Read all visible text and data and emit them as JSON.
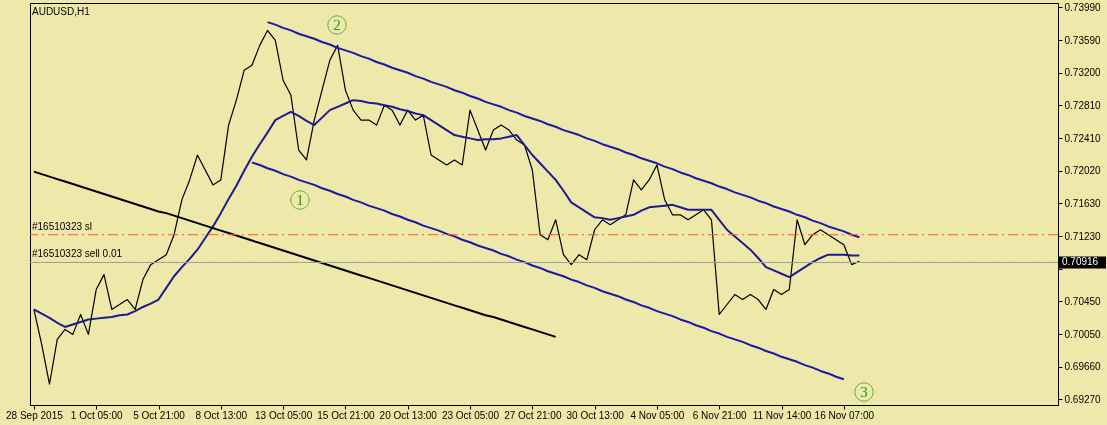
{
  "chart_data": {
    "type": "line",
    "title": "AUDUSD,H1",
    "categories": [
      "28 Sep 2015",
      null,
      null,
      null,
      null,
      null,
      null,
      null,
      "1 Oct 05:00",
      null,
      null,
      null,
      null,
      null,
      null,
      null,
      "5 Oct 21:00",
      null,
      null,
      null,
      null,
      null,
      null,
      null,
      "8 Oct 13:00",
      null,
      null,
      null,
      null,
      null,
      null,
      null,
      "13 Oct 05:00",
      null,
      null,
      null,
      null,
      null,
      null,
      null,
      "15 Oct 21:00",
      null,
      null,
      null,
      null,
      null,
      null,
      null,
      "20 Oct 13:00",
      null,
      null,
      null,
      null,
      null,
      null,
      null,
      "23 Oct 05:00",
      null,
      null,
      null,
      null,
      null,
      null,
      null,
      "27 Oct 21:00",
      null,
      null,
      null,
      null,
      null,
      null,
      null,
      "30 Oct 13:00",
      null,
      null,
      null,
      null,
      null,
      null,
      null,
      "4 Nov 05:00",
      null,
      null,
      null,
      null,
      null,
      null,
      null,
      "6 Nov 21:00",
      null,
      null,
      null,
      null,
      null,
      null,
      null,
      "11 Nov 14:00",
      null,
      null,
      null,
      null,
      null,
      null,
      null,
      "16 Nov 07:00",
      null,
      null,
      null,
      null,
      null,
      null,
      null,
      null,
      null,
      null,
      null,
      null,
      null,
      null,
      null,
      null,
      null,
      null,
      null,
      null,
      null,
      null,
      null,
      null,
      null,
      null,
      null
    ],
    "series": [
      {
        "color": "#000000",
        "values": [
          0.7035,
          0.6993,
          0.6945,
          0.6999,
          0.7011,
          0.7005,
          0.7029,
          0.7005,
          0.7059,
          0.7077,
          0.7035,
          0.7041,
          0.7047,
          0.7035,
          0.7071,
          0.7089,
          0.7095,
          0.7101,
          0.7125,
          0.7167,
          0.7191,
          0.7221,
          0.7203,
          0.7185,
          0.7191,
          0.7257,
          0.7287,
          0.7323,
          0.7329,
          0.7353,
          0.7371,
          0.7359,
          0.7311,
          0.7293,
          0.7227,
          0.7215,
          0.7263,
          0.7299,
          0.7335,
          0.7353,
          0.7299,
          0.7275,
          0.7263,
          0.7263,
          0.7257,
          0.7281,
          0.7275,
          0.7257,
          0.7275,
          0.7263,
          0.7269,
          0.7221,
          0.7215,
          0.7209,
          0.7215,
          0.7209,
          0.7275,
          0.7251,
          0.7227,
          0.7251,
          0.7257,
          0.7251,
          0.7239,
          0.7233,
          0.7203,
          0.7125,
          0.7119,
          0.7143,
          0.7101,
          0.7089,
          0.7101,
          0.7095,
          0.7131,
          0.7143,
          0.7137,
          0.7143,
          0.7149,
          0.7191,
          0.7179,
          0.7191,
          0.7209,
          0.7167,
          0.7149,
          0.7149,
          0.7143,
          0.7149,
          0.7155,
          0.7143,
          0.7029,
          0.7041,
          0.7053,
          0.7047,
          0.7053,
          0.7047,
          0.7035,
          0.7059,
          0.7053,
          0.7059,
          0.7143,
          0.7113,
          0.7125,
          0.7131,
          0.7125,
          0.7119,
          0.7113,
          0.7089,
          0.7093,
          null,
          null,
          null,
          null,
          null,
          null,
          null,
          null,
          null,
          null,
          null,
          null,
          null,
          null,
          null,
          null,
          null,
          null,
          null,
          null,
          null,
          null,
          null,
          null,
          null
        ]
      },
      {
        "color": "#1c1c8c",
        "values": [
          0.7035,
          0.703,
          0.7025,
          0.7019,
          0.7014,
          0.7017,
          0.702,
          0.7023,
          0.7024,
          0.7025,
          0.7026,
          0.7028,
          0.7029,
          0.7033,
          0.7038,
          0.7042,
          0.7047,
          0.7061,
          0.7075,
          0.7086,
          0.7096,
          0.7107,
          0.7121,
          0.7135,
          0.7151,
          0.7168,
          0.7184,
          0.7202,
          0.7219,
          0.7234,
          0.7248,
          0.7263,
          0.7268,
          0.7273,
          0.7268,
          0.7262,
          0.7257,
          0.7266,
          0.7275,
          0.7279,
          0.7283,
          0.7287,
          0.7286,
          0.7284,
          0.7283,
          0.7281,
          0.7279,
          0.7276,
          0.7274,
          0.7271,
          0.7269,
          0.7263,
          0.7257,
          0.7251,
          0.7245,
          0.7243,
          0.7241,
          0.7239,
          0.724,
          0.724,
          0.7241,
          0.7243,
          0.7245,
          0.7233,
          0.7221,
          0.7211,
          0.7201,
          0.7191,
          0.7178,
          0.7164,
          0.7158,
          0.7152,
          0.7146,
          0.7145,
          0.7143,
          0.7145,
          0.7147,
          0.7149,
          0.7154,
          0.7158,
          0.7159,
          0.716,
          0.7161,
          0.7158,
          0.7155,
          0.7155,
          0.7155,
          0.7155,
          0.7143,
          0.7131,
          0.7123,
          0.7115,
          0.7107,
          0.7097,
          0.7086,
          0.7082,
          0.7078,
          0.7074,
          0.708,
          0.7086,
          0.7092,
          0.7097,
          0.7101,
          0.7101,
          0.7101,
          0.71,
          0.71,
          null,
          null,
          null,
          null,
          null,
          null,
          null,
          null,
          null,
          null,
          null,
          null,
          null,
          null,
          null,
          null,
          null,
          null,
          null,
          null,
          null,
          null,
          null,
          null,
          null
        ]
      },
      {
        "color": "#1a1aa6",
        "values": [
          null,
          null,
          null,
          null,
          null,
          null,
          null,
          null,
          null,
          null,
          null,
          null,
          null,
          null,
          null,
          null,
          null,
          null,
          null,
          null,
          null,
          null,
          null,
          null,
          null,
          null,
          null,
          null,
          null,
          null,
          0.7381,
          0.7378,
          0.7374,
          0.7371,
          0.7367,
          0.7364,
          0.7361,
          0.7357,
          0.7354,
          0.735,
          0.7347,
          0.7344,
          0.734,
          0.7337,
          0.7333,
          0.733,
          0.7326,
          0.7323,
          0.732,
          0.7316,
          0.7313,
          0.7309,
          0.7306,
          0.7303,
          0.7299,
          0.7296,
          0.7292,
          0.7289,
          0.7285,
          0.7282,
          0.7279,
          0.7275,
          0.7272,
          0.7268,
          0.7265,
          0.7262,
          0.7258,
          0.7255,
          0.7251,
          0.7248,
          0.7245,
          0.7241,
          0.7238,
          0.7234,
          0.7231,
          0.7228,
          0.7224,
          0.7221,
          0.7217,
          0.7214,
          0.7211,
          0.7207,
          0.7204,
          0.72,
          0.7197,
          0.7193,
          0.719,
          0.7187,
          0.7183,
          0.718,
          0.7176,
          0.7173,
          0.717,
          0.7166,
          0.7163,
          0.7159,
          0.7156,
          0.7153,
          0.7149,
          0.7146,
          0.7142,
          0.7139,
          0.7135,
          0.7132,
          0.7129,
          0.7125,
          0.7122,
          null,
          null,
          null,
          null,
          null,
          null,
          null,
          null,
          null,
          null,
          null,
          null,
          null,
          null,
          null,
          null,
          null,
          null,
          null,
          null,
          null,
          null,
          null,
          null,
          null
        ]
      },
      {
        "color": "#1a1aa6",
        "values": [
          null,
          null,
          null,
          null,
          null,
          null,
          null,
          null,
          null,
          null,
          null,
          null,
          null,
          null,
          null,
          null,
          null,
          null,
          null,
          null,
          null,
          null,
          null,
          null,
          null,
          null,
          null,
          null,
          0.7212,
          0.7209,
          0.7205,
          0.7202,
          0.7198,
          0.7195,
          0.7191,
          0.7188,
          0.7185,
          0.7181,
          0.7178,
          0.7174,
          0.7171,
          0.7167,
          0.7164,
          0.716,
          0.7157,
          0.7154,
          0.715,
          0.7147,
          0.7143,
          0.714,
          0.7136,
          0.7133,
          0.713,
          0.7126,
          0.7123,
          0.7119,
          0.7116,
          0.7112,
          0.7109,
          0.7106,
          0.7102,
          0.7099,
          0.7095,
          0.7092,
          0.7088,
          0.7085,
          0.7081,
          0.7078,
          0.7075,
          0.7071,
          0.7068,
          0.7064,
          0.7061,
          0.7057,
          0.7054,
          0.7051,
          0.7047,
          0.7044,
          0.704,
          0.7037,
          0.7033,
          0.703,
          0.7027,
          0.7023,
          0.702,
          0.7016,
          0.7013,
          0.7009,
          0.7006,
          0.7002,
          0.6999,
          0.6996,
          0.6992,
          0.6989,
          0.6985,
          0.6982,
          0.6978,
          0.6975,
          0.6972,
          0.6968,
          0.6965,
          0.6961,
          0.6958,
          0.6954,
          0.6951,
          null,
          null,
          null,
          null,
          null,
          null,
          null,
          null,
          null,
          null,
          null,
          null,
          null,
          null,
          null,
          null,
          null,
          null,
          null,
          null,
          null,
          null,
          null,
          null,
          null,
          null,
          null
        ]
      },
      {
        "color": "#000000",
        "values": [
          0.7201,
          0.7198,
          0.7195,
          0.7192,
          0.7189,
          0.7186,
          0.7183,
          0.718,
          0.7177,
          0.7174,
          0.7171,
          0.7168,
          0.7165,
          0.7162,
          0.7159,
          0.7156,
          0.7153,
          0.7151,
          0.7148,
          0.7145,
          0.7142,
          0.7139,
          0.7136,
          0.7133,
          0.713,
          0.7127,
          0.7124,
          0.7121,
          0.7118,
          0.7115,
          0.7112,
          0.7109,
          0.7106,
          0.7103,
          0.71,
          0.7097,
          0.7094,
          0.7091,
          0.7088,
          0.7085,
          0.7082,
          0.7079,
          0.7076,
          0.7073,
          0.707,
          0.7067,
          0.7064,
          0.7061,
          0.7058,
          0.7055,
          0.7052,
          0.7049,
          0.7046,
          0.7043,
          0.704,
          0.7037,
          0.7034,
          0.7031,
          0.7028,
          0.7026,
          0.7023,
          0.702,
          0.7017,
          0.7014,
          0.7011,
          0.7008,
          0.7005,
          0.7002,
          null,
          null,
          null,
          null,
          null,
          null,
          null,
          null,
          null,
          null,
          null,
          null,
          null,
          null,
          null,
          null,
          null,
          null,
          null,
          null,
          null,
          null,
          null,
          null,
          null,
          null,
          null,
          null,
          null,
          null,
          null,
          null,
          null,
          null,
          null,
          null,
          null,
          null,
          null,
          null,
          null,
          null,
          null,
          null,
          null,
          null,
          null,
          null,
          null,
          null,
          null,
          null,
          null,
          null,
          null,
          null,
          null,
          null,
          null,
          null,
          null,
          null,
          null,
          null
        ]
      }
    ],
    "ylim": [
      0.692,
      0.7404
    ],
    "yticks": [
      {
        "value": 0.6927,
        "label": "0.69270"
      },
      {
        "value": 0.6966,
        "label": "0.69660"
      },
      {
        "value": 0.7005,
        "label": "0.70050"
      },
      {
        "value": 0.7045,
        "label": "0.70450"
      },
      {
        "value": 0.7084,
        "label": null
      },
      {
        "value": 0.7123,
        "label": "0.71230"
      },
      {
        "value": 0.7163,
        "label": "0.71630"
      },
      {
        "value": 0.7202,
        "label": "0.72020"
      },
      {
        "value": 0.7241,
        "label": "0.72410"
      },
      {
        "value": 0.7281,
        "label": "0.72810"
      },
      {
        "value": 0.732,
        "label": "0.73200"
      },
      {
        "value": 0.7359,
        "label": "0.73590"
      },
      {
        "value": 0.7399,
        "label": "0.73990"
      }
    ],
    "ref_lines": [
      {
        "axis": "y",
        "value": 0.7125,
        "label": "#16510323 sl",
        "color": "#ff5a1a",
        "line_style": "dashdot"
      },
      {
        "axis": "y",
        "value": 0.70916,
        "label": "#16510323 sell 0.01",
        "color": "#1a8c1a",
        "line_style": "dashdot"
      },
      {
        "axis": "y",
        "value": 0.70916,
        "label": "0.70916",
        "color": "#a0a0a0",
        "line_style": "solid"
      }
    ],
    "annotations": [
      "1",
      "2",
      "3"
    ],
    "grid": false
  }
}
